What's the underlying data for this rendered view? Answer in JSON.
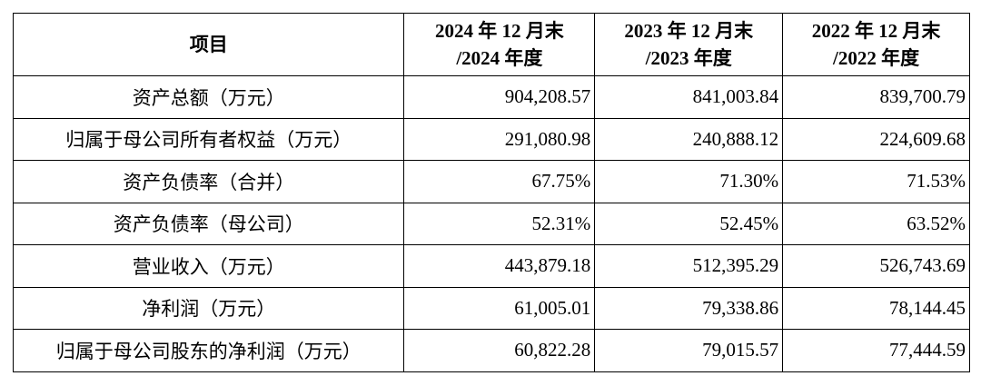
{
  "table": {
    "header": [
      [
        "项目"
      ],
      [
        "2024 年 12 月末",
        "/2024 年度"
      ],
      [
        "2023 年 12 月末",
        "/2023 年度"
      ],
      [
        "2022 年 12 月末",
        "/2022 年度"
      ]
    ],
    "rows": [
      [
        "资产总额（万元）",
        "904,208.57",
        "841,003.84",
        "839,700.79"
      ],
      [
        "归属于母公司所有者权益（万元）",
        "291,080.98",
        "240,888.12",
        "224,609.68"
      ],
      [
        "资产负债率（合并）",
        "67.75%",
        "71.30%",
        "71.53%"
      ],
      [
        "资产负债率（母公司）",
        "52.31%",
        "52.45%",
        "63.52%"
      ],
      [
        "营业收入（万元）",
        "443,879.18",
        "512,395.29",
        "526,743.69"
      ],
      [
        "净利润（万元）",
        "61,005.01",
        "79,338.86",
        "78,144.45"
      ],
      [
        "归属于母公司股东的净利润（万元）",
        "60,822.28",
        "79,015.57",
        "77,444.59"
      ]
    ]
  }
}
